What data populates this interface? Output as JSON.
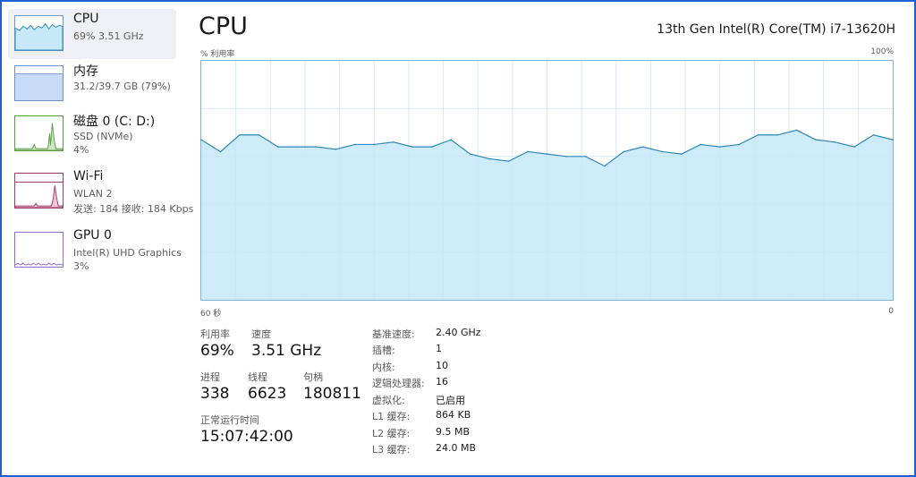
{
  "sidebar": {
    "items": [
      {
        "title": "CPU",
        "sub1": "69% 3.51 GHz",
        "sub2": ""
      },
      {
        "title": "内存",
        "sub1": "31.2/39.7 GB (79%)",
        "sub2": ""
      },
      {
        "title": "磁盘 0 (C: D:)",
        "sub1": "SSD (NVMe)",
        "sub2": "4%"
      },
      {
        "title": "Wi-Fi",
        "sub1": "WLAN 2",
        "sub2": "发送: 184 接收: 184 Kbps"
      },
      {
        "title": "GPU 0",
        "sub1": "Intel(R) UHD Graphics",
        "sub2": "3%"
      }
    ]
  },
  "header": {
    "title": "CPU",
    "model": "13th Gen Intel(R) Core(TM) i7-13620H"
  },
  "graph": {
    "ylabel": "% 利用率",
    "ymax_label": "100%",
    "xleft_label": "60 秒",
    "xright_label": "0",
    "fill_color": "#c6e8f8",
    "line_color": "#2f87b8",
    "grid_color": "#d9e8f2"
  },
  "chart_data": {
    "type": "area",
    "ylabel": "% 利用率",
    "ylim": [
      0,
      100
    ],
    "x": [
      60,
      58.33,
      56.67,
      55,
      53.33,
      51.67,
      50,
      48.33,
      46.67,
      45,
      43.33,
      41.67,
      40,
      38.33,
      36.67,
      35,
      33.33,
      31.67,
      30,
      28.33,
      26.67,
      25,
      23.33,
      21.67,
      20,
      18.33,
      16.67,
      15,
      13.33,
      11.67,
      10,
      8.33,
      6.67,
      5,
      3.33,
      1.67,
      0
    ],
    "values": [
      67,
      62,
      69,
      69,
      64,
      64,
      64,
      63,
      65,
      65,
      66,
      64,
      64,
      67,
      61,
      59,
      58,
      62,
      61,
      60,
      60,
      56,
      62,
      64,
      62,
      61,
      65,
      64,
      65,
      69,
      69,
      71,
      67,
      66,
      64,
      69,
      67
    ],
    "grid": true
  },
  "stats": {
    "utilization_label": "利用率",
    "utilization": "69%",
    "speed_label": "速度",
    "speed": "3.51 GHz",
    "processes_label": "进程",
    "processes": "338",
    "threads_label": "线程",
    "threads": "6623",
    "handles_label": "句柄",
    "handles": "180811",
    "uptime_label": "正常运行时间",
    "uptime": "15:07:42:00"
  },
  "specs": [
    {
      "k": "基准速度:",
      "v": "2.40 GHz"
    },
    {
      "k": "插槽:",
      "v": "1"
    },
    {
      "k": "内核:",
      "v": "10"
    },
    {
      "k": "逻辑处理器:",
      "v": "16"
    },
    {
      "k": "虚拟化:",
      "v": "已启用"
    },
    {
      "k": "L1 缓存:",
      "v": "864 KB"
    },
    {
      "k": "L2 缓存:",
      "v": "9.5 MB"
    },
    {
      "k": "L3 缓存:",
      "v": "24.0 MB"
    }
  ]
}
